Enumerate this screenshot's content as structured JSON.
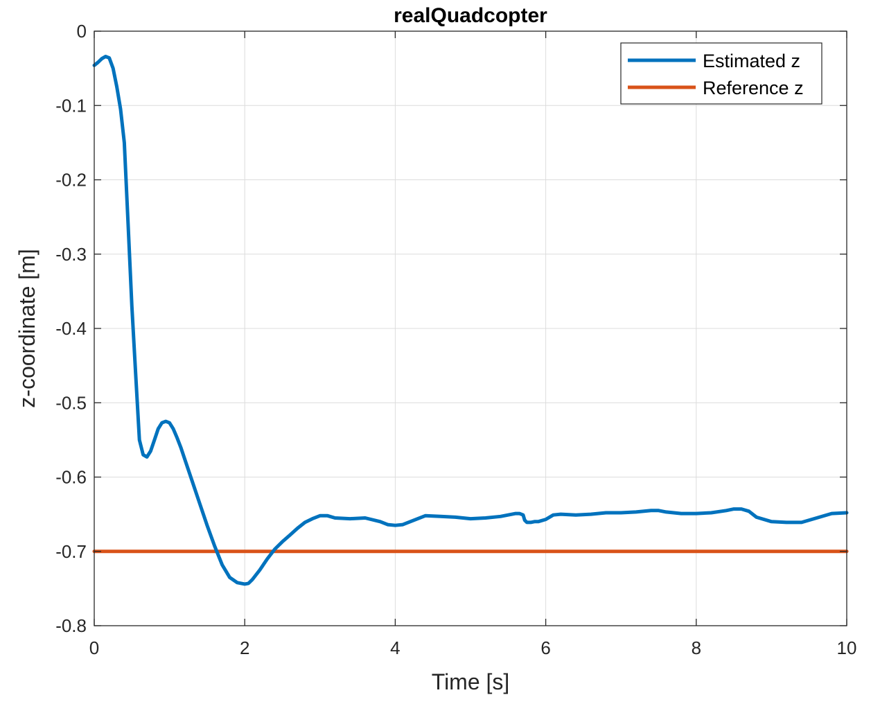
{
  "chart_data": {
    "type": "line",
    "title": "realQuadcopter",
    "xlabel": "Time [s]",
    "ylabel": "z-coordinate [m]",
    "xlim": [
      0,
      10
    ],
    "ylim": [
      -0.8,
      0
    ],
    "xticks": [
      0,
      2,
      4,
      6,
      8,
      10
    ],
    "xtick_labels": [
      "0",
      "2",
      "4",
      "6",
      "8",
      "10"
    ],
    "yticks": [
      0,
      -0.1,
      -0.2,
      -0.3,
      -0.4,
      -0.5,
      -0.6,
      -0.7,
      -0.8
    ],
    "ytick_labels": [
      "0",
      "-0.1",
      "-0.2",
      "-0.3",
      "-0.4",
      "-0.5",
      "-0.6",
      "-0.7",
      "-0.8"
    ],
    "grid": true,
    "legend_position": "top-right",
    "series": [
      {
        "name": "Estimated z",
        "color": "#0072BD",
        "x": [
          0,
          0.05,
          0.1,
          0.15,
          0.2,
          0.25,
          0.3,
          0.35,
          0.4,
          0.45,
          0.5,
          0.55,
          0.6,
          0.65,
          0.7,
          0.75,
          0.8,
          0.85,
          0.9,
          0.95,
          1.0,
          1.05,
          1.1,
          1.15,
          1.2,
          1.3,
          1.4,
          1.5,
          1.6,
          1.7,
          1.8,
          1.9,
          2.0,
          2.05,
          2.1,
          2.2,
          2.3,
          2.4,
          2.5,
          2.6,
          2.7,
          2.8,
          2.9,
          3.0,
          3.1,
          3.2,
          3.4,
          3.6,
          3.8,
          3.9,
          4.0,
          4.1,
          4.2,
          4.4,
          4.6,
          4.8,
          5.0,
          5.2,
          5.4,
          5.6,
          5.65,
          5.7,
          5.72,
          5.75,
          5.8,
          5.85,
          5.9,
          6.0,
          6.1,
          6.2,
          6.4,
          6.6,
          6.8,
          7.0,
          7.2,
          7.4,
          7.5,
          7.6,
          7.8,
          8.0,
          8.2,
          8.4,
          8.5,
          8.6,
          8.7,
          8.8,
          9.0,
          9.2,
          9.4,
          9.6,
          9.8,
          10.0
        ],
        "y": [
          -0.046,
          -0.042,
          -0.037,
          -0.034,
          -0.036,
          -0.05,
          -0.075,
          -0.105,
          -0.15,
          -0.26,
          -0.37,
          -0.46,
          -0.55,
          -0.57,
          -0.573,
          -0.565,
          -0.55,
          -0.535,
          -0.527,
          -0.525,
          -0.527,
          -0.535,
          -0.547,
          -0.56,
          -0.575,
          -0.605,
          -0.635,
          -0.665,
          -0.693,
          -0.718,
          -0.735,
          -0.742,
          -0.744,
          -0.743,
          -0.738,
          -0.725,
          -0.71,
          -0.697,
          -0.687,
          -0.678,
          -0.669,
          -0.661,
          -0.656,
          -0.652,
          -0.652,
          -0.655,
          -0.656,
          -0.655,
          -0.66,
          -0.664,
          -0.665,
          -0.664,
          -0.66,
          -0.652,
          -0.653,
          -0.654,
          -0.656,
          -0.655,
          -0.653,
          -0.649,
          -0.649,
          -0.651,
          -0.658,
          -0.661,
          -0.661,
          -0.66,
          -0.66,
          -0.657,
          -0.651,
          -0.65,
          -0.651,
          -0.65,
          -0.648,
          -0.648,
          -0.647,
          -0.645,
          -0.645,
          -0.647,
          -0.649,
          -0.649,
          -0.648,
          -0.645,
          -0.643,
          -0.643,
          -0.646,
          -0.654,
          -0.66,
          -0.661,
          -0.661,
          -0.655,
          -0.649,
          -0.648
        ]
      },
      {
        "name": "Reference z",
        "color": "#D95319",
        "x": [
          0,
          10
        ],
        "y": [
          -0.7,
          -0.7
        ]
      }
    ]
  }
}
